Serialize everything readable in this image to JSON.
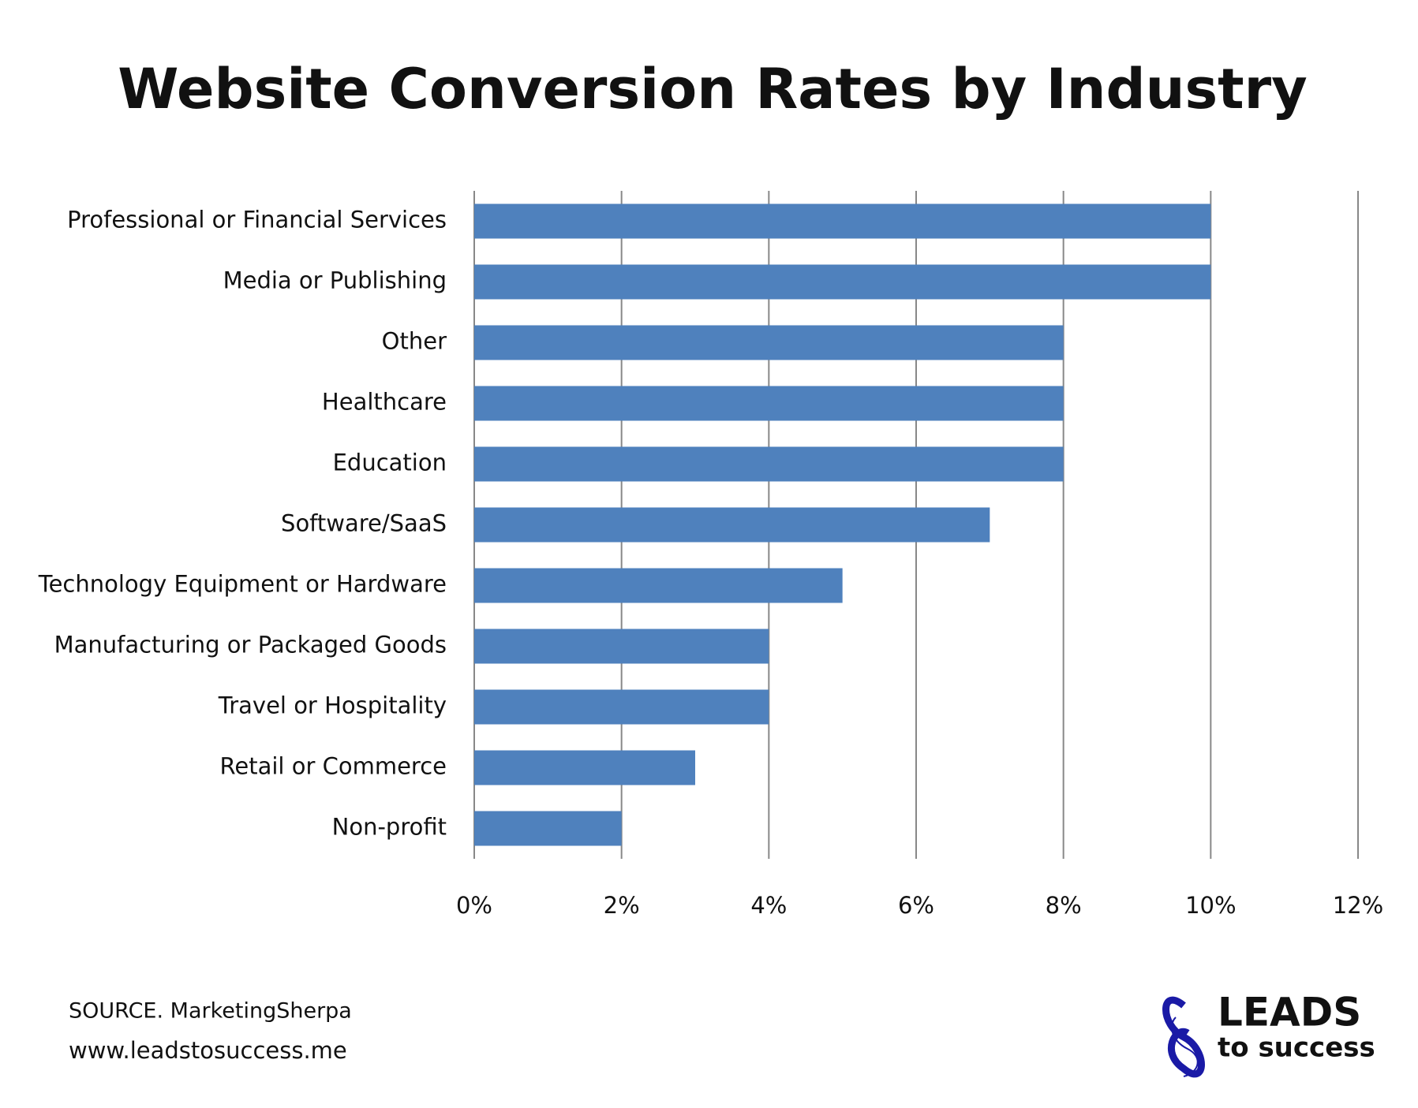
{
  "chart_data": {
    "type": "bar",
    "orientation": "horizontal",
    "title": "Website Conversion Rates by Industry",
    "categories": [
      "Professional or Financial Services",
      "Media or Publishing",
      "Other",
      "Healthcare",
      "Education",
      "Software/SaaS",
      "Technology Equipment or Hardware",
      "Manufacturing or Packaged Goods",
      "Travel or Hospitality",
      "Retail or Commerce",
      "Non-profit"
    ],
    "values": [
      10,
      10,
      8,
      8,
      8,
      7,
      5,
      4,
      4,
      3,
      2
    ],
    "color": "#4f81bd",
    "xlim": [
      0,
      12
    ],
    "xticks": [
      {
        "value": 0,
        "label": "0%"
      },
      {
        "value": 2,
        "label": "2%"
      },
      {
        "value": 4,
        "label": "4%"
      },
      {
        "value": 6,
        "label": "6%"
      },
      {
        "value": 8,
        "label": "8%"
      },
      {
        "value": 10,
        "label": "10%"
      },
      {
        "value": 12,
        "label": "12%"
      }
    ],
    "grid": true
  },
  "footer": {
    "source": "SOURCE. MarketingSherpa",
    "website": "www.leadstosuccess.me"
  },
  "logo": {
    "name": "LEADS",
    "tagline": "to success"
  }
}
